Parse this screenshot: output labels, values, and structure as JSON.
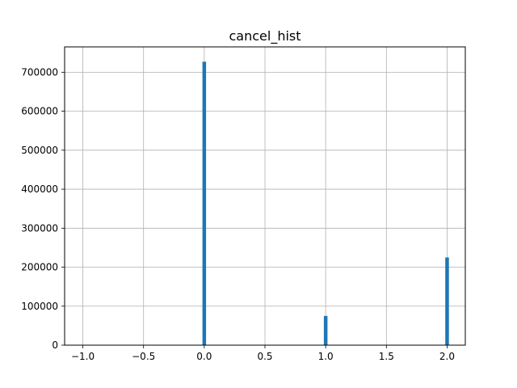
{
  "chart_data": {
    "type": "bar",
    "title": "cancel_hist",
    "xlabel": "",
    "ylabel": "",
    "xlim": [
      -1.15,
      2.15
    ],
    "ylim": [
      0,
      765000
    ],
    "grid": true,
    "x_ticks": [
      -1.0,
      -0.5,
      0.0,
      0.5,
      1.0,
      1.5,
      2.0
    ],
    "x_tick_labels": [
      "−1.0",
      "−0.5",
      "0.0",
      "0.5",
      "1.0",
      "1.5",
      "2.0"
    ],
    "y_ticks": [
      0,
      100000,
      200000,
      300000,
      400000,
      500000,
      600000,
      700000
    ],
    "y_tick_labels": [
      "0",
      "100000",
      "200000",
      "300000",
      "400000",
      "500000",
      "600000",
      "700000"
    ],
    "bin_width": 0.03,
    "bars": [
      {
        "x": -1.0,
        "value": 1000
      },
      {
        "x": 0.0,
        "value": 727000
      },
      {
        "x": 1.0,
        "value": 75000
      },
      {
        "x": 2.0,
        "value": 225000
      }
    ],
    "colors": {
      "bar": "#1f77b4",
      "grid": "#b0b0b0",
      "axis": "#000000"
    }
  }
}
